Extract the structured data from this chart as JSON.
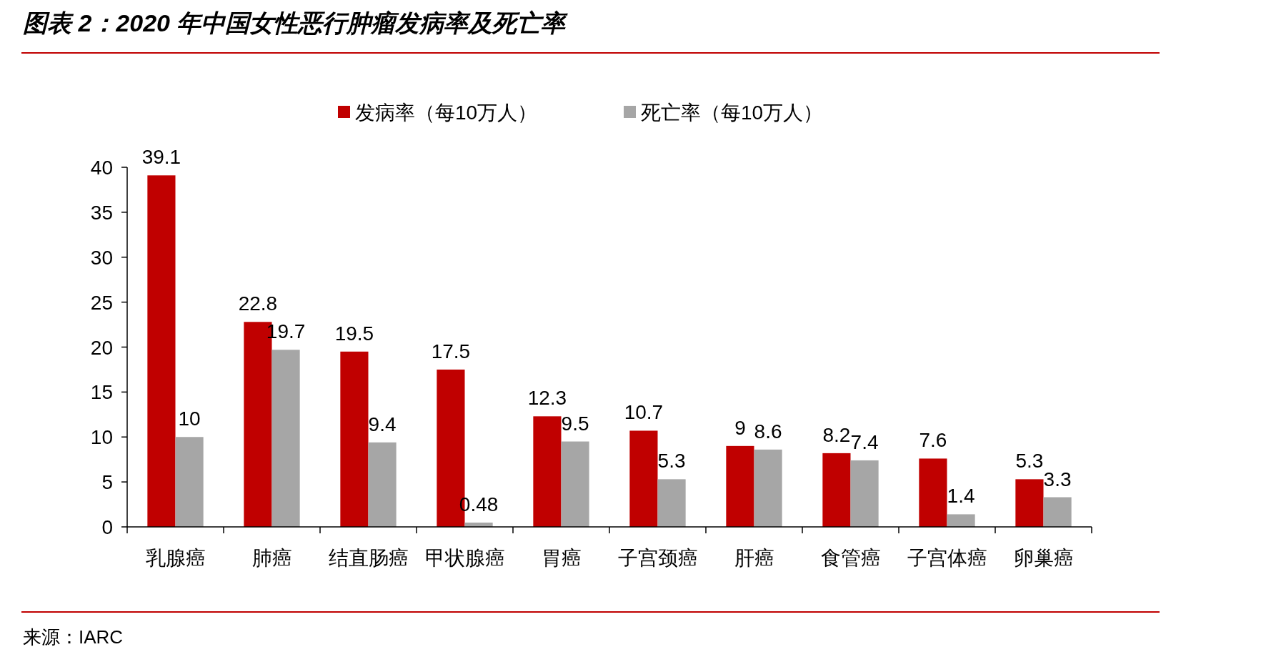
{
  "chart_data": {
    "type": "bar",
    "title": "图表 2：2020 年中国女性恶行肿瘤发病率及死亡率",
    "categories": [
      "乳腺癌",
      "肺癌",
      "结直肠癌",
      "甲状腺癌",
      "胃癌",
      "子宫颈癌",
      "肝癌",
      "食管癌",
      "子宫体癌",
      "卵巢癌"
    ],
    "series": [
      {
        "name": "发病率（每10万人）",
        "color": "#c00000",
        "values": [
          39.1,
          22.8,
          19.5,
          17.5,
          12.3,
          10.7,
          9,
          8.2,
          7.6,
          5.3
        ]
      },
      {
        "name": "死亡率（每10万人）",
        "color": "#a6a6a6",
        "values": [
          10,
          19.7,
          9.4,
          0.48,
          9.5,
          5.3,
          8.6,
          7.4,
          1.4,
          3.3
        ]
      }
    ],
    "ylim": [
      0,
      40
    ],
    "yticks": [
      0,
      5,
      10,
      15,
      20,
      25,
      30,
      35,
      40
    ],
    "grid": false,
    "legend": "top",
    "data_labels": true,
    "annotations": [
      "来源：IARC"
    ]
  }
}
